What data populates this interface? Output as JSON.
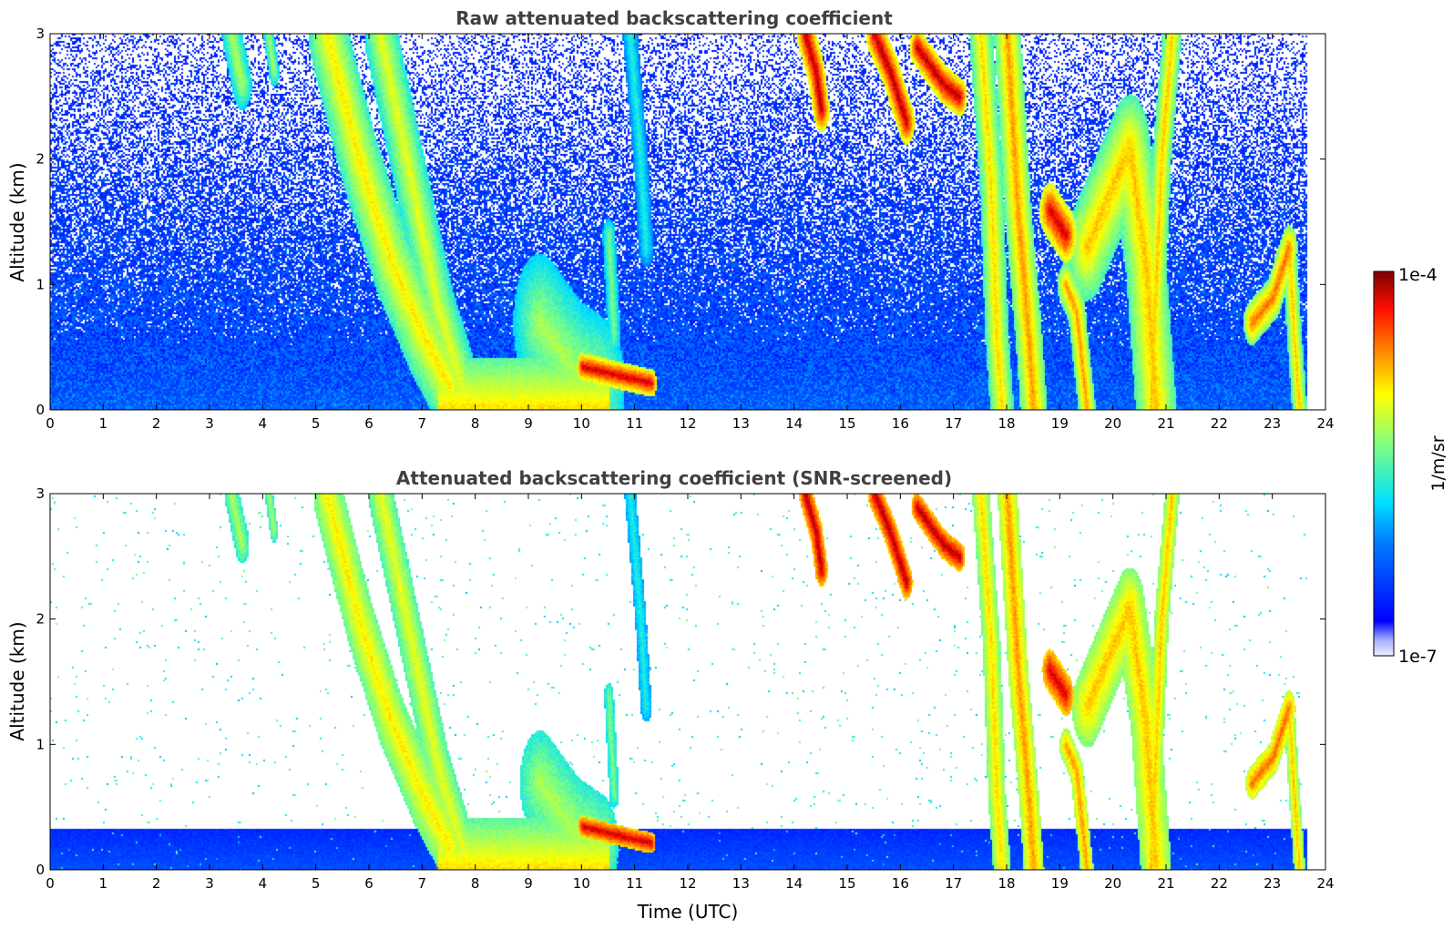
{
  "chart_data": [
    {
      "type": "heatmap",
      "title": "Raw attenuated backscattering coefficient",
      "xlabel": "",
      "ylabel": "Altitude (km)",
      "xlim": [
        0,
        24
      ],
      "ylim": [
        0,
        3
      ],
      "xticks": [
        "0",
        "1",
        "2",
        "3",
        "4",
        "5",
        "6",
        "7",
        "8",
        "9",
        "10",
        "11",
        "12",
        "13",
        "14",
        "15",
        "16",
        "17",
        "18",
        "19",
        "20",
        "21",
        "22",
        "23",
        "24"
      ],
      "yticks": [
        "0",
        "1",
        "2",
        "3"
      ],
      "data_end_x": 23.65,
      "screened": false
    },
    {
      "type": "heatmap",
      "title": "Attenuated backscattering coefficient (SNR-screened)",
      "xlabel": "Time (UTC)",
      "ylabel": "Altitude (km)",
      "xlim": [
        0,
        24
      ],
      "ylim": [
        0,
        3
      ],
      "xticks": [
        "0",
        "1",
        "2",
        "3",
        "4",
        "5",
        "6",
        "7",
        "8",
        "9",
        "10",
        "11",
        "12",
        "13",
        "14",
        "15",
        "16",
        "17",
        "18",
        "19",
        "20",
        "21",
        "22",
        "23",
        "24"
      ],
      "yticks": [
        "0",
        "1",
        "2",
        "3"
      ],
      "data_end_x": 23.65,
      "screened": true
    }
  ],
  "colorbar": {
    "label": "1/m/sr",
    "max_label": "1e-4",
    "min_label": "1e-7",
    "scale": "log",
    "colormap": "jet"
  },
  "layers": [
    {
      "name": "boundary-layer",
      "x0": 0,
      "x1": 23.65,
      "ymax": 0.34,
      "level": 0.22
    },
    {
      "name": "fog-layer-morning",
      "x0": 7.3,
      "x1": 10.5,
      "ymax": 0.42,
      "level": 0.72
    }
  ],
  "features": [
    {
      "name": "cloud-descending-1",
      "pts": [
        [
          5.2,
          3.0
        ],
        [
          5.8,
          2.0
        ],
        [
          6.4,
          1.2
        ],
        [
          7.0,
          0.6
        ],
        [
          7.5,
          0.2
        ]
      ],
      "width": 0.35,
      "level": 0.7
    },
    {
      "name": "cloud-descending-2",
      "pts": [
        [
          6.2,
          3.0
        ],
        [
          6.8,
          1.8
        ],
        [
          7.3,
          0.8
        ],
        [
          7.8,
          0.1
        ]
      ],
      "width": 0.3,
      "level": 0.66
    },
    {
      "name": "cloud-3h",
      "pts": [
        [
          3.4,
          3.0
        ],
        [
          3.6,
          2.6
        ]
      ],
      "width": 0.18,
      "level": 0.6
    },
    {
      "name": "cloud-4h",
      "pts": [
        [
          4.1,
          3.0
        ],
        [
          4.2,
          2.7
        ]
      ],
      "width": 0.1,
      "level": 0.6
    },
    {
      "name": "cloud-9-10h",
      "pts": [
        [
          9.2,
          0.7
        ],
        [
          9.8,
          0.35
        ],
        [
          10.3,
          0.2
        ]
      ],
      "width": 0.5,
      "level": 0.6
    },
    {
      "name": "cloud-layer-10-11h",
      "pts": [
        [
          10.0,
          0.35
        ],
        [
          10.8,
          0.27
        ],
        [
          11.3,
          0.22
        ]
      ],
      "width": 0.1,
      "level": 0.95
    },
    {
      "name": "cloud-10.5h",
      "pts": [
        [
          10.5,
          1.4
        ],
        [
          10.6,
          0.6
        ]
      ],
      "width": 0.12,
      "level": 0.55
    },
    {
      "name": "cloud-11h",
      "pts": [
        [
          10.9,
          3.0
        ],
        [
          11.1,
          2.0
        ],
        [
          11.2,
          1.3
        ]
      ],
      "width": 0.14,
      "level": 0.45
    },
    {
      "name": "cloud-14.3h",
      "pts": [
        [
          14.2,
          3.0
        ],
        [
          14.4,
          2.7
        ],
        [
          14.5,
          2.4
        ]
      ],
      "width": 0.16,
      "level": 0.97
    },
    {
      "name": "cloud-15.8h",
      "pts": [
        [
          15.5,
          3.0
        ],
        [
          15.8,
          2.7
        ],
        [
          16.1,
          2.3
        ]
      ],
      "width": 0.16,
      "level": 0.97
    },
    {
      "name": "cloud-16.7h",
      "pts": [
        [
          16.3,
          2.9
        ],
        [
          16.8,
          2.6
        ],
        [
          17.1,
          2.5
        ]
      ],
      "width": 0.14,
      "level": 0.97
    },
    {
      "name": "cloud-17.7h",
      "pts": [
        [
          17.5,
          3.0
        ],
        [
          17.7,
          1.8
        ],
        [
          17.8,
          0.6
        ],
        [
          17.9,
          0.0
        ]
      ],
      "width": 0.22,
      "level": 0.72
    },
    {
      "name": "cloud-18.3h",
      "pts": [
        [
          18.0,
          3.0
        ],
        [
          18.2,
          1.6
        ],
        [
          18.4,
          0.6
        ],
        [
          18.5,
          0.0
        ]
      ],
      "width": 0.25,
      "level": 0.78
    },
    {
      "name": "cloud-19h",
      "pts": [
        [
          18.8,
          1.6
        ],
        [
          19.1,
          1.4
        ]
      ],
      "width": 0.2,
      "level": 0.95
    },
    {
      "name": "cloud-19.3h",
      "pts": [
        [
          19.1,
          1.0
        ],
        [
          19.3,
          0.8
        ],
        [
          19.5,
          0.0
        ]
      ],
      "width": 0.16,
      "level": 0.78
    },
    {
      "name": "cloud-20h",
      "pts": [
        [
          19.5,
          1.3
        ],
        [
          20.0,
          1.8
        ],
        [
          20.3,
          2.1
        ],
        [
          20.6,
          1.2
        ],
        [
          20.8,
          0.0
        ]
      ],
      "width": 0.38,
      "level": 0.74
    },
    {
      "name": "cloud-21h",
      "pts": [
        [
          21.1,
          3.0
        ],
        [
          20.9,
          2.0
        ],
        [
          20.8,
          1.0
        ],
        [
          20.7,
          0.0
        ]
      ],
      "width": 0.18,
      "level": 0.74
    },
    {
      "name": "cloud-23h",
      "pts": [
        [
          22.6,
          0.7
        ],
        [
          23.0,
          0.9
        ],
        [
          23.3,
          1.3
        ]
      ],
      "width": 0.16,
      "level": 0.82
    },
    {
      "name": "cloud-23.4h",
      "pts": [
        [
          23.3,
          1.3
        ],
        [
          23.4,
          0.6
        ],
        [
          23.5,
          0.0
        ]
      ],
      "width": 0.14,
      "level": 0.74
    }
  ]
}
